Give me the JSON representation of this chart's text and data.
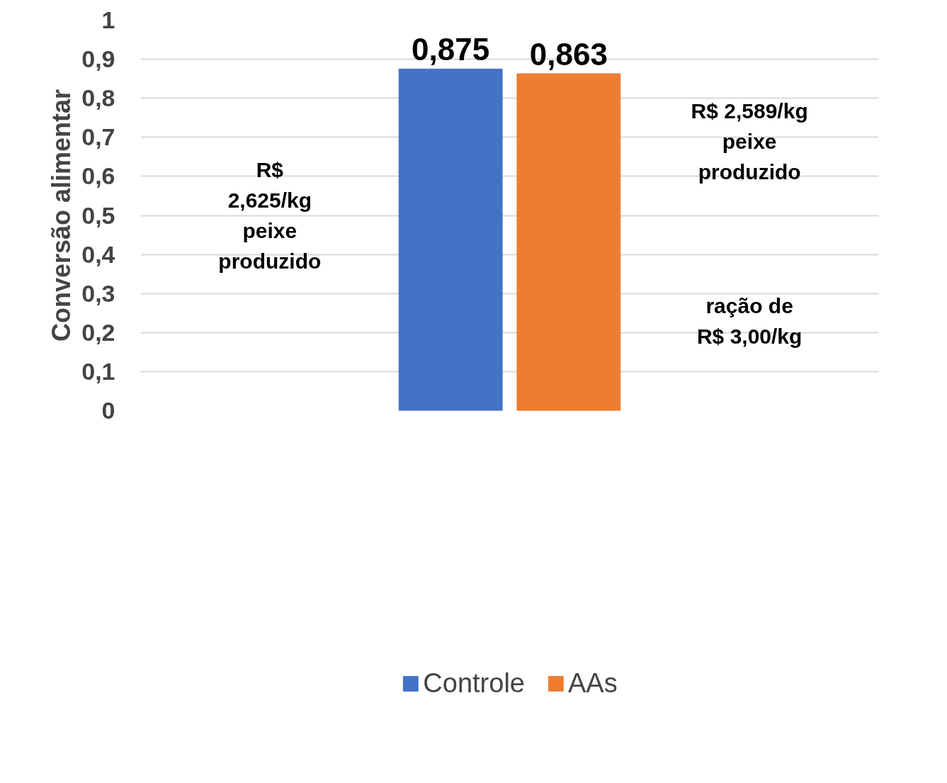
{
  "chart_data": {
    "type": "bar",
    "ylabel": "Conversão alimentar",
    "categories": [
      null
    ],
    "series": [
      {
        "name": "Controle",
        "color": "#4472c4",
        "values": [
          0.875
        ],
        "value_labels": [
          "0,875"
        ]
      },
      {
        "name": "AAs",
        "color": "#ed7d31",
        "values": [
          0.863
        ],
        "value_labels": [
          "0,863"
        ]
      }
    ],
    "ylim": [
      0,
      1
    ],
    "yticks": [
      {
        "value": 0,
        "label": "0"
      },
      {
        "value": 0.1,
        "label": "0,1"
      },
      {
        "value": 0.2,
        "label": "0,2"
      },
      {
        "value": 0.3,
        "label": "0,3"
      },
      {
        "value": 0.4,
        "label": "0,4"
      },
      {
        "value": 0.5,
        "label": "0,5"
      },
      {
        "value": 0.6,
        "label": "0,6"
      },
      {
        "value": 0.7,
        "label": "0,7"
      },
      {
        "value": 0.8,
        "label": "0,8"
      },
      {
        "value": 0.9,
        "label": "0,9"
      },
      {
        "value": 1,
        "label": "1"
      }
    ],
    "grid": "y",
    "legend": "bottom",
    "annotations": [
      "R$\n2,625/kg\npeixe\nproduzido",
      "R$ 2,589/kg\npeixe\nproduzido",
      "ração de\nR$ 3,00/kg"
    ]
  }
}
